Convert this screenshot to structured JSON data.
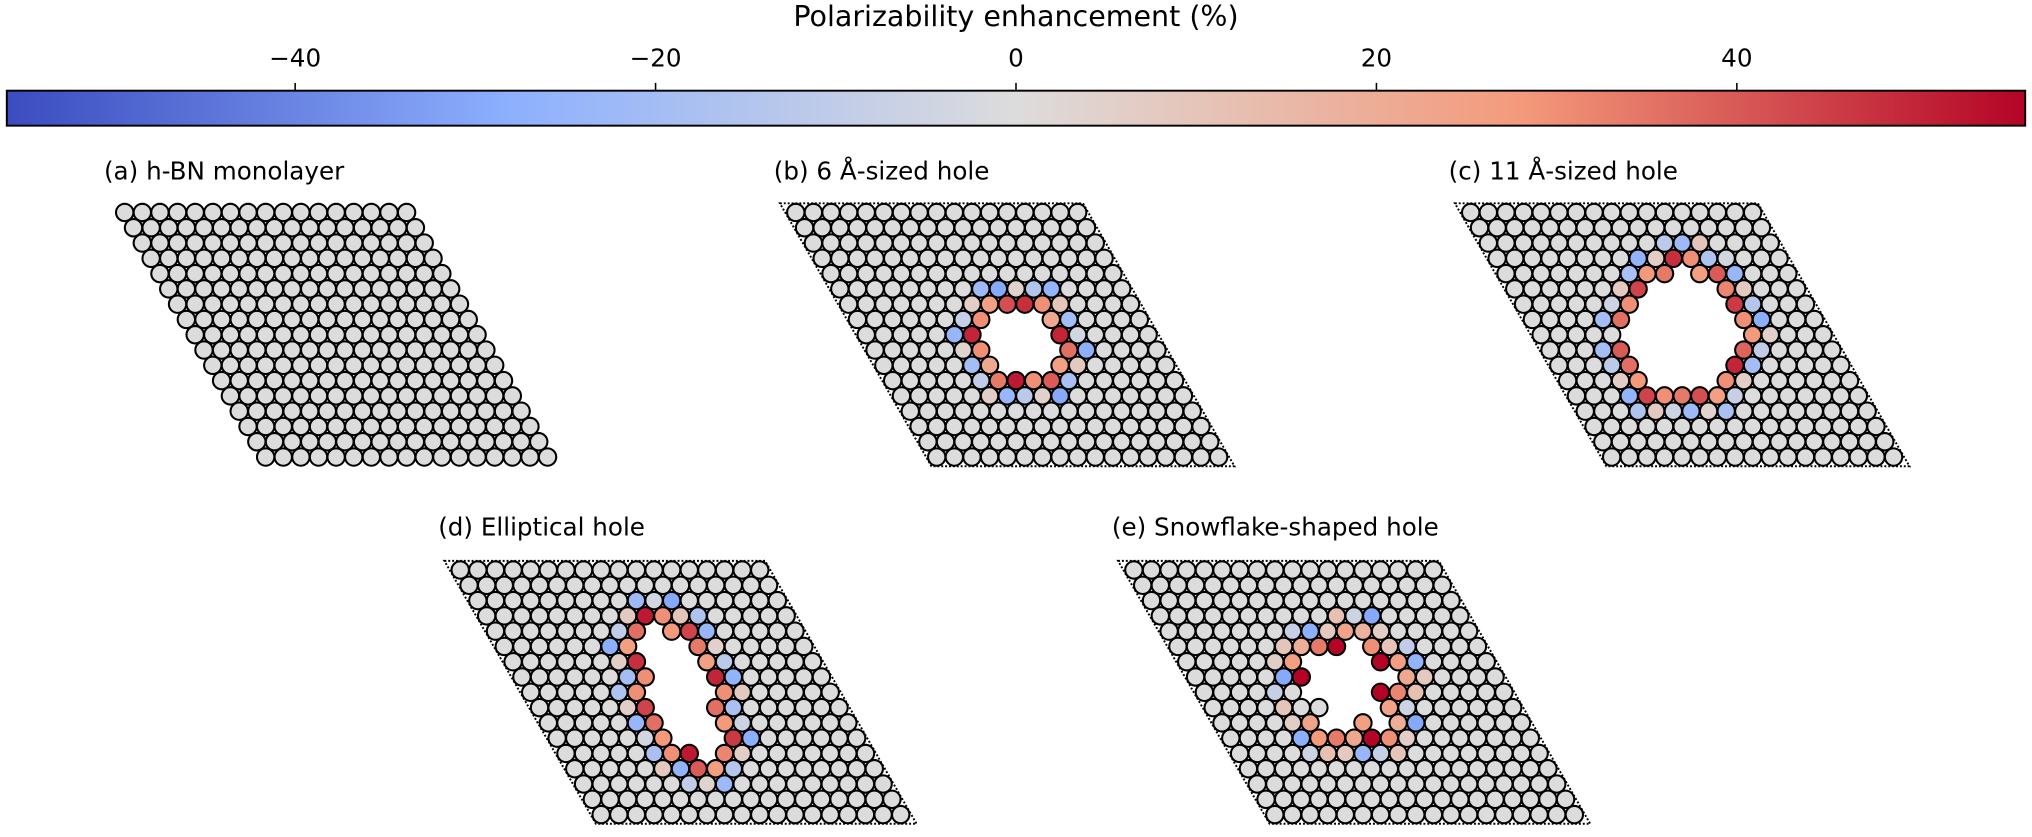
{
  "chart_data": {
    "type": "colorbar",
    "label": "Polarizability enhancement (%)",
    "colormap": "coolwarm",
    "clim": [
      -56,
      56
    ],
    "ticks": [
      {
        "value": -40,
        "label": "−40"
      },
      {
        "value": -20,
        "label": "−20"
      },
      0,
      20,
      40
    ]
  },
  "panels": [
    {
      "title": "(a) h-BN monolayer",
      "shells": []
    },
    {
      "title": "(b) 6 Å-sized hole",
      "shells": [
        [
          50,
          30,
          25,
          42,
          48,
          30,
          22,
          50,
          36,
          26,
          40,
          30,
          52,
          34,
          22,
          30,
          45,
          28
        ],
        [
          -25,
          -8,
          6,
          -22,
          -30,
          4,
          -15,
          -26,
          10,
          -20,
          -4,
          -28,
          8,
          -18,
          -30,
          5,
          -12,
          -24,
          6,
          -10,
          -20,
          4
        ]
      ]
    },
    {
      "title": "(c) 11 Å-sized hole",
      "shells": [
        [
          36,
          30,
          44,
          28,
          34,
          48,
          30,
          26,
          40,
          32,
          46,
          30,
          28,
          38,
          50,
          30,
          26,
          42,
          34,
          30,
          44,
          28,
          36,
          40
        ],
        [
          -20,
          -5,
          8,
          -18,
          -26,
          6,
          -12,
          -22,
          10,
          -16,
          -4,
          -24,
          8,
          -14,
          -28,
          5,
          -10,
          -20,
          6,
          -8,
          -18,
          4,
          -22,
          -6,
          8,
          -16,
          -26,
          6,
          -12,
          -20
        ]
      ]
    },
    {
      "title": "(d) Elliptical hole",
      "shells": [
        [
          30,
          48,
          26,
          36,
          52,
          30,
          28,
          44,
          34,
          26,
          50,
          30,
          36,
          28,
          46,
          32,
          26,
          40,
          52,
          30,
          28,
          36,
          44,
          30,
          26,
          38,
          50,
          30,
          34,
          28
        ],
        [
          -20,
          6,
          -28,
          -10,
          8,
          -22,
          -4,
          -30,
          10,
          -16,
          -24,
          5,
          -12,
          -26,
          8,
          -18,
          -6,
          -28,
          6,
          -14,
          -22,
          4,
          -10,
          -26,
          8,
          -18,
          -4,
          -24,
          6,
          -16,
          -20,
          5,
          -12,
          -28,
          8,
          -8
        ]
      ]
    },
    {
      "title": "(e) Snowflake-shaped hole",
      "shells": [
        [
          56,
          26,
          20,
          34,
          56,
          24,
          18,
          30,
          56,
          26,
          22,
          32,
          56,
          24,
          20,
          30,
          56,
          26,
          22,
          34,
          28,
          24
        ],
        [
          -30,
          6,
          10,
          -8,
          -28,
          8,
          12,
          -6,
          -30,
          6,
          10,
          -10,
          -26,
          8,
          12,
          -6,
          -30,
          6,
          10,
          -8,
          -24,
          8,
          12,
          -6,
          -28,
          6,
          10,
          -8
        ]
      ]
    }
  ]
}
